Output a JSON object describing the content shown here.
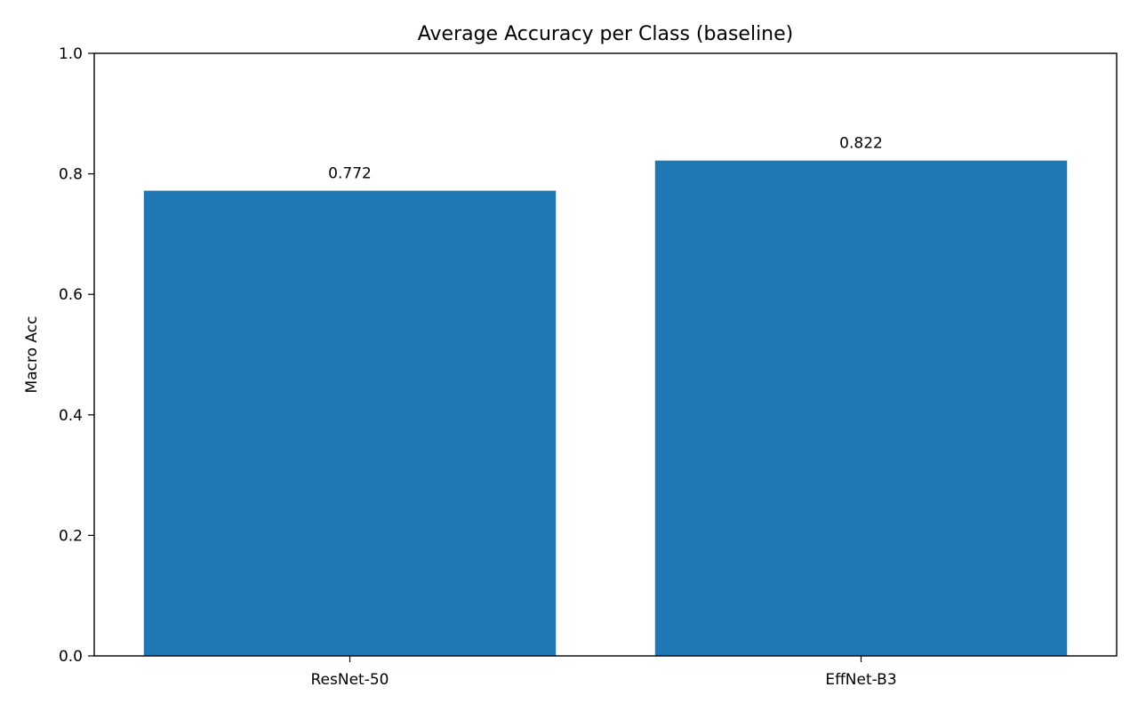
{
  "chart_data": {
    "type": "bar",
    "title": "Average Accuracy per Class (baseline)",
    "xlabel": "",
    "ylabel": "Macro Acc",
    "categories": [
      "ResNet-50",
      "EffNet-B3"
    ],
    "values": [
      0.772,
      0.822
    ],
    "data_labels": [
      "0.772",
      "0.822"
    ],
    "ylim": [
      0.0,
      1.0
    ],
    "yticks": [
      0.0,
      0.2,
      0.4,
      0.6,
      0.8,
      1.0
    ],
    "ytick_labels": [
      "0.0",
      "0.2",
      "0.4",
      "0.6",
      "0.8",
      "1.0"
    ],
    "grid": false,
    "legend": "none",
    "colors": {
      "bar": "#1f77b4",
      "axis": "#000000",
      "background": "#ffffff"
    }
  }
}
